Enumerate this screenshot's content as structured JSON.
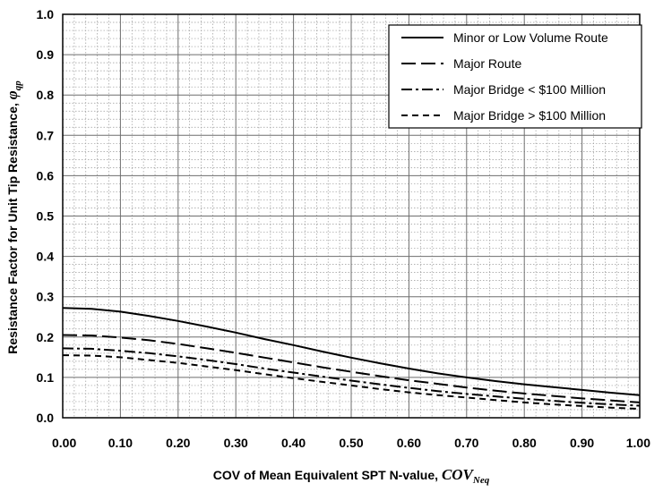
{
  "chart_data": {
    "type": "line",
    "xlabel": "COV of Mean Equivalent SPT N-value, ",
    "xlabel_symbol": "COV",
    "xlabel_subscript": "Neq",
    "ylabel": "Resistance Factor for Unit Tip Resistance, ",
    "ylabel_symbol": "φ",
    "ylabel_subscript": "qp",
    "xlim": [
      0,
      1
    ],
    "ylim": [
      0,
      1
    ],
    "x_ticks": [
      "0.00",
      "0.10",
      "0.20",
      "0.30",
      "0.40",
      "0.50",
      "0.60",
      "0.70",
      "0.80",
      "0.90",
      "1.00"
    ],
    "y_ticks": [
      "0.0",
      "0.1",
      "0.2",
      "0.3",
      "0.4",
      "0.5",
      "0.6",
      "0.7",
      "0.8",
      "0.9",
      "1.0"
    ],
    "grid": "major and minor",
    "legend_position": "top-right",
    "series": [
      {
        "name": "Minor or Low Volume Route",
        "dash": "solid",
        "x": [
          0.0,
          0.05,
          0.1,
          0.15,
          0.2,
          0.25,
          0.3,
          0.35,
          0.4,
          0.45,
          0.5,
          0.55,
          0.6,
          0.65,
          0.7,
          0.75,
          0.8,
          0.85,
          0.9,
          0.95,
          1.0
        ],
        "y": [
          0.272,
          0.27,
          0.263,
          0.252,
          0.24,
          0.226,
          0.211,
          0.195,
          0.18,
          0.164,
          0.149,
          0.135,
          0.122,
          0.11,
          0.1,
          0.091,
          0.083,
          0.076,
          0.069,
          0.062,
          0.056
        ]
      },
      {
        "name": "Major Route",
        "dash": "long-dash",
        "x": [
          0.0,
          0.05,
          0.1,
          0.15,
          0.2,
          0.25,
          0.3,
          0.35,
          0.4,
          0.45,
          0.5,
          0.55,
          0.6,
          0.65,
          0.7,
          0.75,
          0.8,
          0.85,
          0.9,
          0.95,
          1.0
        ],
        "y": [
          0.205,
          0.204,
          0.199,
          0.192,
          0.183,
          0.172,
          0.161,
          0.149,
          0.137,
          0.125,
          0.114,
          0.103,
          0.093,
          0.084,
          0.075,
          0.067,
          0.06,
          0.054,
          0.048,
          0.043,
          0.038
        ]
      },
      {
        "name": "Major Bridge < $100 Million",
        "dash": "dash-dot",
        "x": [
          0.0,
          0.05,
          0.1,
          0.15,
          0.2,
          0.25,
          0.3,
          0.35,
          0.4,
          0.45,
          0.5,
          0.55,
          0.6,
          0.65,
          0.7,
          0.75,
          0.8,
          0.85,
          0.9,
          0.95,
          1.0
        ],
        "y": [
          0.172,
          0.171,
          0.166,
          0.16,
          0.152,
          0.143,
          0.133,
          0.122,
          0.112,
          0.102,
          0.092,
          0.083,
          0.074,
          0.066,
          0.059,
          0.053,
          0.047,
          0.042,
          0.037,
          0.033,
          0.03
        ]
      },
      {
        "name": "Major Bridge > $100 Million",
        "dash": "short-dash",
        "x": [
          0.0,
          0.05,
          0.1,
          0.15,
          0.2,
          0.25,
          0.3,
          0.35,
          0.4,
          0.45,
          0.5,
          0.55,
          0.6,
          0.65,
          0.7,
          0.75,
          0.8,
          0.85,
          0.9,
          0.95,
          1.0
        ],
        "y": [
          0.155,
          0.154,
          0.15,
          0.143,
          0.136,
          0.127,
          0.118,
          0.108,
          0.098,
          0.089,
          0.08,
          0.071,
          0.063,
          0.056,
          0.05,
          0.044,
          0.038,
          0.033,
          0.029,
          0.025,
          0.022
        ]
      }
    ]
  }
}
